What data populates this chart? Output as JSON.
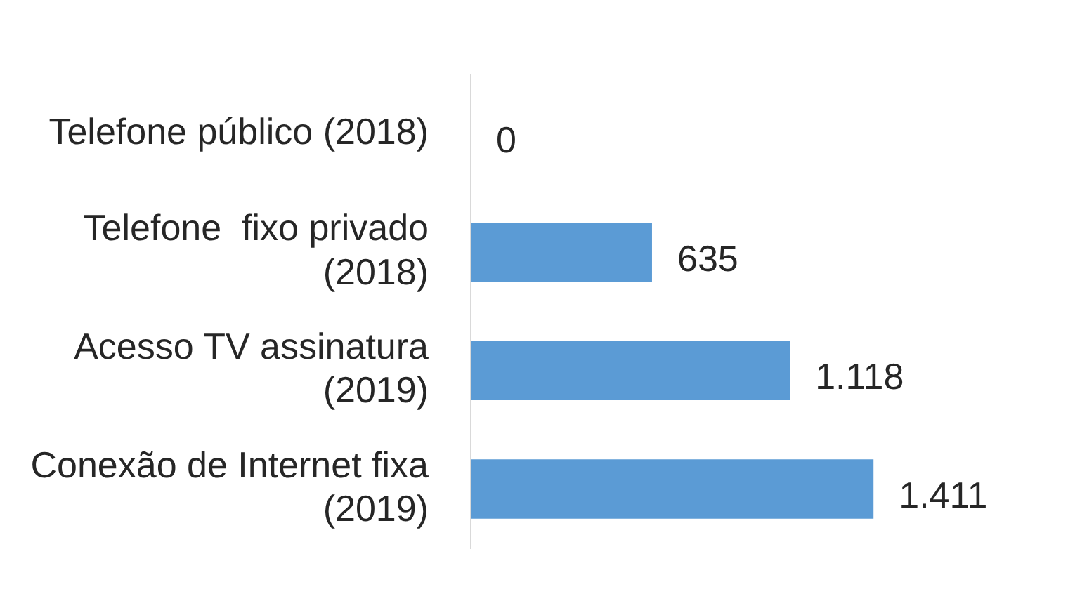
{
  "chart_data": {
    "type": "bar",
    "orientation": "horizontal",
    "categories": [
      "Telefone público (2018)",
      "Telefone  fixo privado (2018)",
      "Acesso TV assinatura (2019)",
      "Conexão de Internet fixa (2019)"
    ],
    "values": [
      0,
      635,
      1118,
      1411
    ],
    "value_labels": [
      "0",
      "635",
      "1.118",
      "1.411"
    ],
    "color": "#5b9bd5",
    "legend": false,
    "tick_labels": "y"
  }
}
